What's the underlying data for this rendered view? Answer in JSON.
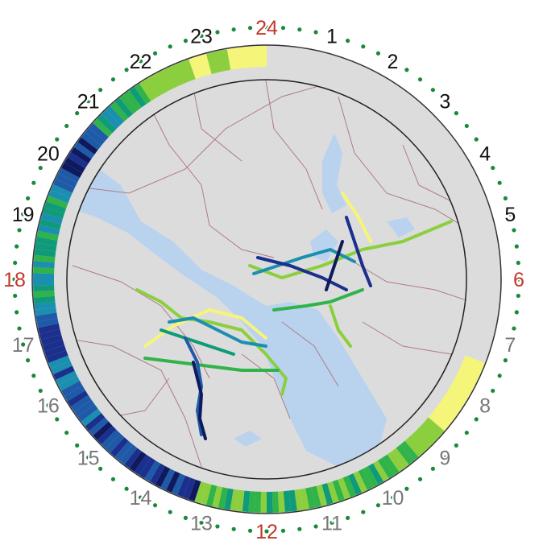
{
  "hour_labels": [
    {
      "text": "24",
      "hour": 24,
      "color": "#c0392b"
    },
    {
      "text": "1",
      "hour": 1,
      "color": "#111111"
    },
    {
      "text": "2",
      "hour": 2,
      "color": "#111111"
    },
    {
      "text": "3",
      "hour": 3,
      "color": "#111111"
    },
    {
      "text": "4",
      "hour": 4,
      "color": "#111111"
    },
    {
      "text": "5",
      "hour": 5,
      "color": "#111111"
    },
    {
      "text": "6",
      "hour": 6,
      "color": "#c0392b"
    },
    {
      "text": "7",
      "hour": 7,
      "color": "#777777"
    },
    {
      "text": "8",
      "hour": 8,
      "color": "#777777"
    },
    {
      "text": "9",
      "hour": 9,
      "color": "#777777"
    },
    {
      "text": "10",
      "hour": 10,
      "color": "#777777"
    },
    {
      "text": "11",
      "hour": 11,
      "color": "#777777"
    },
    {
      "text": "12",
      "hour": 12,
      "color": "#c0392b"
    },
    {
      "text": "13",
      "hour": 13,
      "color": "#777777"
    },
    {
      "text": "14",
      "hour": 14,
      "color": "#777777"
    },
    {
      "text": "15",
      "hour": 15,
      "color": "#777777"
    },
    {
      "text": "16",
      "hour": 16,
      "color": "#777777"
    },
    {
      "text": "17",
      "hour": 17,
      "color": "#777777"
    },
    {
      "text": "18",
      "hour": 18,
      "color": "#c0392b"
    },
    {
      "text": "19",
      "hour": 19,
      "color": "#111111"
    },
    {
      "text": "20",
      "hour": 20,
      "color": "#111111"
    },
    {
      "text": "21",
      "hour": 21,
      "color": "#111111"
    },
    {
      "text": "22",
      "hour": 22,
      "color": "#111111"
    },
    {
      "text": "23",
      "hour": 23,
      "color": "#111111"
    }
  ],
  "colors": {
    "dots": "#1a8a3a",
    "ring_empty": "#dcdcdc",
    "land": "#dcdcdc",
    "water": "#b9d3ef",
    "borders": "#b07a86",
    "ring_palette": [
      "#f5f57a",
      "#8ccf3e",
      "#2fb34a",
      "#0f9a7a",
      "#1a8fb0",
      "#1e5aa8",
      "#1b2f8c",
      "#0f1a5e"
    ]
  },
  "ring_activity": [
    {
      "from": 7.4,
      "to": 8.7,
      "level": 0
    },
    {
      "from": 8.7,
      "to": 9.3,
      "level": 1
    },
    {
      "from": 9.3,
      "to": 11.2,
      "level": 2,
      "varied": true
    },
    {
      "from": 11.2,
      "to": 13.2,
      "level": 2,
      "varied": true
    },
    {
      "from": 13.2,
      "to": 15.2,
      "level": 6,
      "varied": true
    },
    {
      "from": 15.2,
      "to": 17.6,
      "level": 5,
      "varied": true
    },
    {
      "from": 17.6,
      "to": 19.6,
      "level": 3,
      "varied": true
    },
    {
      "from": 19.6,
      "to": 20.8,
      "level": 6,
      "varied": true
    },
    {
      "from": 20.8,
      "to": 21.8,
      "level": 3,
      "varied": true
    },
    {
      "from": 21.8,
      "to": 22.7,
      "level": 1
    },
    {
      "from": 22.7,
      "to": 23.0,
      "level": 0
    },
    {
      "from": 23.0,
      "to": 23.35,
      "level": 1
    },
    {
      "from": 23.35,
      "to": 24.0,
      "level": 0
    }
  ]
}
